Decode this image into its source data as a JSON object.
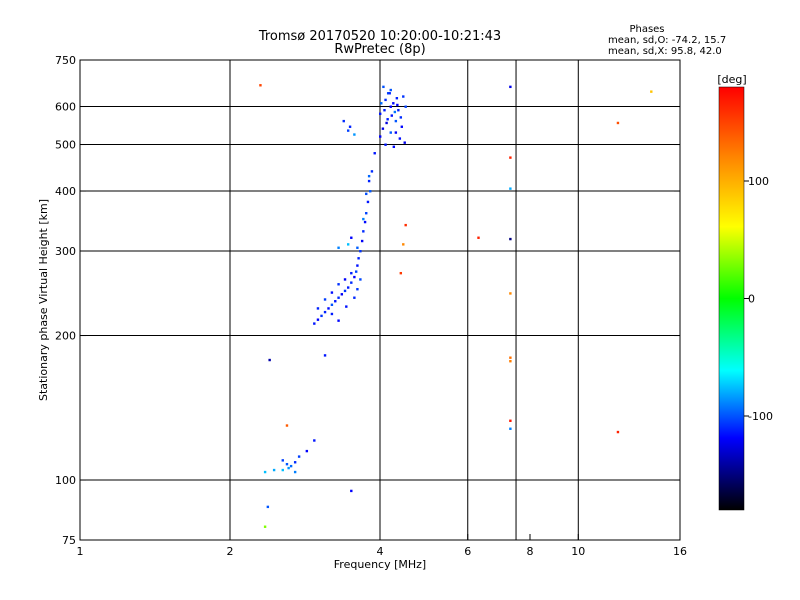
{
  "chart_data": {
    "type": "scatter",
    "title": "Tromsø 20170520 10:20:00-10:21:43",
    "subtitle": "RwPretec (8p)",
    "stats": {
      "heading": "Phases",
      "line_o": "mean, sd,O: -74.2, 15.7",
      "line_x": "mean, sd,X:  95.8, 42.0"
    },
    "xlabel": "Frequency [MHz]",
    "ylabel": "Stationary phase Virtual Height [km]",
    "x_scale": "log",
    "y_scale": "log",
    "xlim": [
      1,
      16
    ],
    "ylim": [
      75,
      750
    ],
    "x_ticks": [
      1,
      2,
      4,
      6,
      8,
      10,
      16
    ],
    "y_ticks": [
      75,
      100,
      200,
      300,
      400,
      500,
      600,
      750
    ],
    "x_grid": [
      2,
      4,
      6,
      7.5,
      10
    ],
    "y_grid": [
      100,
      200,
      300,
      400,
      500,
      600
    ],
    "colorbar": {
      "label": "[deg]",
      "range": [
        -180,
        180
      ],
      "ticks": [
        100,
        0,
        -100
      ]
    },
    "series": [
      {
        "points": [
          [
            4.0,
            580,
            -115
          ],
          [
            4.1,
            620,
            -110
          ],
          [
            4.2,
            600,
            -120
          ],
          [
            4.3,
            560,
            -100
          ],
          [
            4.05,
            540,
            -125
          ],
          [
            4.15,
            640,
            -105
          ],
          [
            4.25,
            610,
            -118
          ],
          [
            4.35,
            590,
            -112
          ],
          [
            4.45,
            630,
            -108
          ],
          [
            4.0,
            520,
            -120
          ],
          [
            4.1,
            500,
            -115
          ],
          [
            4.2,
            650,
            -100
          ],
          [
            4.3,
            530,
            -122
          ],
          [
            4.4,
            570,
            -110
          ],
          [
            4.5,
            600,
            -105
          ],
          [
            4.02,
            610,
            -95
          ],
          [
            4.12,
            555,
            -128
          ],
          [
            4.22,
            575,
            -116
          ],
          [
            4.32,
            625,
            -112
          ],
          [
            4.42,
            545,
            -119
          ],
          [
            4.48,
            505,
            -124
          ],
          [
            4.06,
            660,
            -101
          ],
          [
            4.18,
            640,
            -111
          ],
          [
            4.28,
            585,
            -93
          ],
          [
            4.38,
            515,
            -117
          ],
          [
            4.08,
            590,
            -114
          ],
          [
            4.2,
            530,
            -99
          ],
          [
            4.33,
            605,
            -121
          ],
          [
            4.14,
            565,
            -113
          ],
          [
            4.26,
            495,
            -118
          ],
          [
            3.9,
            480,
            -115
          ],
          [
            3.85,
            440,
            -110
          ],
          [
            3.8,
            420,
            -112
          ],
          [
            3.82,
            400,
            -100
          ],
          [
            3.78,
            380,
            -115
          ],
          [
            3.75,
            360,
            -105
          ],
          [
            3.73,
            345,
            -118
          ],
          [
            3.7,
            330,
            -110
          ],
          [
            3.68,
            315,
            -122
          ],
          [
            3.65,
            300,
            -108
          ],
          [
            3.62,
            290,
            -112
          ],
          [
            3.6,
            280,
            -116
          ],
          [
            3.58,
            272,
            -104
          ],
          [
            3.55,
            265,
            -120
          ],
          [
            3.5,
            258,
            -110
          ],
          [
            3.45,
            252,
            -114
          ],
          [
            3.4,
            248,
            -108
          ],
          [
            3.35,
            244,
            -122
          ],
          [
            3.3,
            240,
            -110
          ],
          [
            3.25,
            236,
            -115
          ],
          [
            3.2,
            232,
            -100
          ],
          [
            3.15,
            228,
            -118
          ],
          [
            3.1,
            224,
            -112
          ],
          [
            3.05,
            220,
            -108
          ],
          [
            3.0,
            216,
            -120
          ],
          [
            2.95,
            212,
            -115
          ],
          [
            3.0,
            228,
            -112
          ],
          [
            3.1,
            238,
            -106
          ],
          [
            3.2,
            246,
            -117
          ],
          [
            3.3,
            256,
            -109
          ],
          [
            3.4,
            262,
            -121
          ],
          [
            3.5,
            270,
            -113
          ],
          [
            3.6,
            305,
            -98
          ],
          [
            3.7,
            350,
            -90
          ],
          [
            3.75,
            395,
            -102
          ],
          [
            3.8,
            430,
            -96
          ],
          [
            3.42,
            230,
            -116
          ],
          [
            3.55,
            240,
            -111
          ],
          [
            3.3,
            215,
            -119
          ],
          [
            3.2,
            222,
            -114
          ],
          [
            3.6,
            250,
            -107
          ],
          [
            3.65,
            262,
            -103
          ],
          [
            3.38,
            560,
            -110
          ],
          [
            3.45,
            535,
            -105
          ],
          [
            3.55,
            525,
            -85
          ],
          [
            3.48,
            545,
            -112
          ],
          [
            3.45,
            310,
            -75
          ],
          [
            3.5,
            320,
            -120
          ],
          [
            3.3,
            305,
            -90
          ],
          [
            2.55,
            110,
            -105
          ],
          [
            2.6,
            108,
            -100
          ],
          [
            2.65,
            107,
            -95
          ],
          [
            2.7,
            109,
            -110
          ],
          [
            2.75,
            112,
            -105
          ],
          [
            2.62,
            106,
            -85
          ],
          [
            2.85,
            115,
            -120
          ],
          [
            2.7,
            104,
            -90
          ],
          [
            2.55,
            105,
            -75
          ],
          [
            2.45,
            105,
            -80
          ],
          [
            2.35,
            104,
            -75
          ],
          [
            2.95,
            121,
            -115
          ],
          [
            2.4,
            178,
            -140
          ],
          [
            3.1,
            182,
            -115
          ],
          [
            2.38,
            88,
            -100
          ],
          [
            3.5,
            95,
            -120
          ],
          [
            2.35,
            80,
            30
          ],
          [
            2.6,
            130,
            140
          ],
          [
            2.3,
            665,
            150
          ],
          [
            4.5,
            340,
            160
          ],
          [
            4.45,
            310,
            120
          ],
          [
            4.4,
            270,
            155
          ],
          [
            6.3,
            320,
            165
          ],
          [
            7.3,
            318,
            -150
          ],
          [
            7.3,
            660,
            -125
          ],
          [
            7.3,
            470,
            165
          ],
          [
            7.3,
            405,
            -80
          ],
          [
            7.3,
            245,
            120
          ],
          [
            7.3,
            180,
            130
          ],
          [
            7.3,
            177,
            125
          ],
          [
            7.3,
            133,
            170
          ],
          [
            7.3,
            128,
            -90
          ],
          [
            12.0,
            555,
            145
          ],
          [
            12.0,
            126,
            165
          ],
          [
            14.0,
            645,
            90
          ]
        ]
      }
    ]
  }
}
